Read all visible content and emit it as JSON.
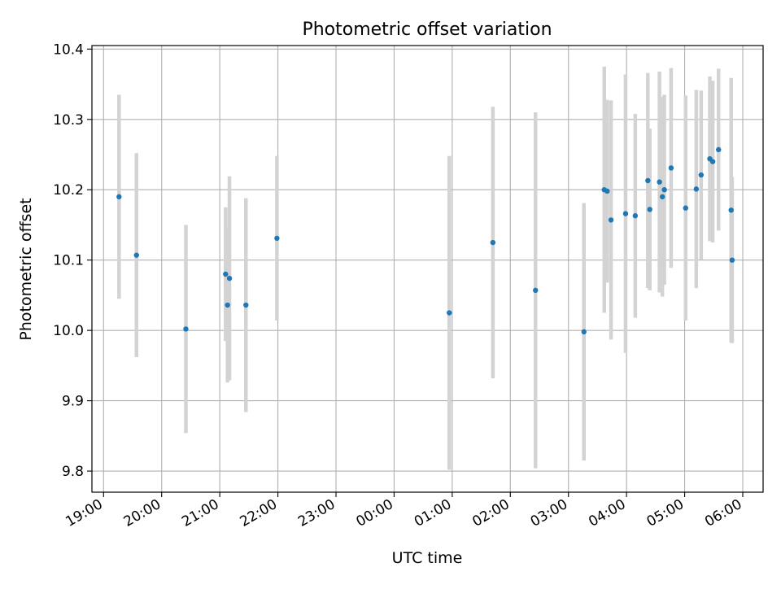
{
  "chart_data": {
    "type": "scatter",
    "title": "Photometric offset variation",
    "xlabel": "UTC time",
    "ylabel": "Photometric offset",
    "x_axis": "time (hours since 19:00 UTC, night spanning midnight)",
    "xlim_hours": [
      -0.2,
      11.35
    ],
    "ylim": [
      9.77,
      10.405
    ],
    "x_tick_labels": [
      "19:00",
      "20:00",
      "21:00",
      "22:00",
      "23:00",
      "00:00",
      "01:00",
      "02:00",
      "03:00",
      "04:00",
      "05:00",
      "06:00"
    ],
    "y_ticks": [
      9.8,
      9.9,
      10.0,
      10.1,
      10.2,
      10.3,
      10.4
    ],
    "y_tick_labels": [
      "9.8",
      "9.9",
      "10.0",
      "10.1",
      "10.2",
      "10.3",
      "10.4"
    ],
    "grid": true,
    "legend": "none",
    "colors": {
      "point": "#1f77b4",
      "errorbar": "#d3d3d3",
      "grid": "#b0b0b0"
    },
    "series": [
      {
        "points": [
          {
            "time": "19:16",
            "y": 10.19,
            "err": 0.145
          },
          {
            "time": "19:34",
            "y": 10.107,
            "err": 0.145
          },
          {
            "time": "20:25",
            "y": 10.002,
            "err": 0.148
          },
          {
            "time": "21:06",
            "y": 10.08,
            "err": 0.095
          },
          {
            "time": "21:08",
            "y": 10.036,
            "err": 0.11
          },
          {
            "time": "21:10",
            "y": 10.074,
            "err": 0.145
          },
          {
            "time": "21:27",
            "y": 10.036,
            "err": 0.152
          },
          {
            "time": "21:59",
            "y": 10.131,
            "err": 0.117
          },
          {
            "time": "00:57",
            "y": 10.025,
            "err": 0.223
          },
          {
            "time": "01:42",
            "y": 10.125,
            "err": 0.193
          },
          {
            "time": "02:26",
            "y": 10.057,
            "err": 0.253
          },
          {
            "time": "03:16",
            "y": 9.998,
            "err": 0.183
          },
          {
            "time": "03:37",
            "y": 10.2,
            "err": 0.175
          },
          {
            "time": "03:40",
            "y": 10.198,
            "err": 0.13
          },
          {
            "time": "03:44",
            "y": 10.157,
            "err": 0.17
          },
          {
            "time": "03:59",
            "y": 10.166,
            "err": 0.198
          },
          {
            "time": "04:09",
            "y": 10.163,
            "err": 0.145
          },
          {
            "time": "04:22",
            "y": 10.213,
            "err": 0.153
          },
          {
            "time": "04:24",
            "y": 10.172,
            "err": 0.115
          },
          {
            "time": "04:34",
            "y": 10.211,
            "err": 0.157
          },
          {
            "time": "04:37",
            "y": 10.19,
            "err": 0.142
          },
          {
            "time": "04:39",
            "y": 10.2,
            "err": 0.135
          },
          {
            "time": "04:46",
            "y": 10.231,
            "err": 0.142
          },
          {
            "time": "05:01",
            "y": 10.174,
            "err": 0.16
          },
          {
            "time": "05:12",
            "y": 10.201,
            "err": 0.141
          },
          {
            "time": "05:17",
            "y": 10.221,
            "err": 0.12
          },
          {
            "time": "05:26",
            "y": 10.244,
            "err": 0.117
          },
          {
            "time": "05:29",
            "y": 10.24,
            "err": 0.115
          },
          {
            "time": "05:35",
            "y": 10.257,
            "err": 0.115
          },
          {
            "time": "05:48",
            "y": 10.171,
            "err": 0.188
          },
          {
            "time": "05:49",
            "y": 10.1,
            "err": 0.118
          }
        ]
      }
    ]
  }
}
